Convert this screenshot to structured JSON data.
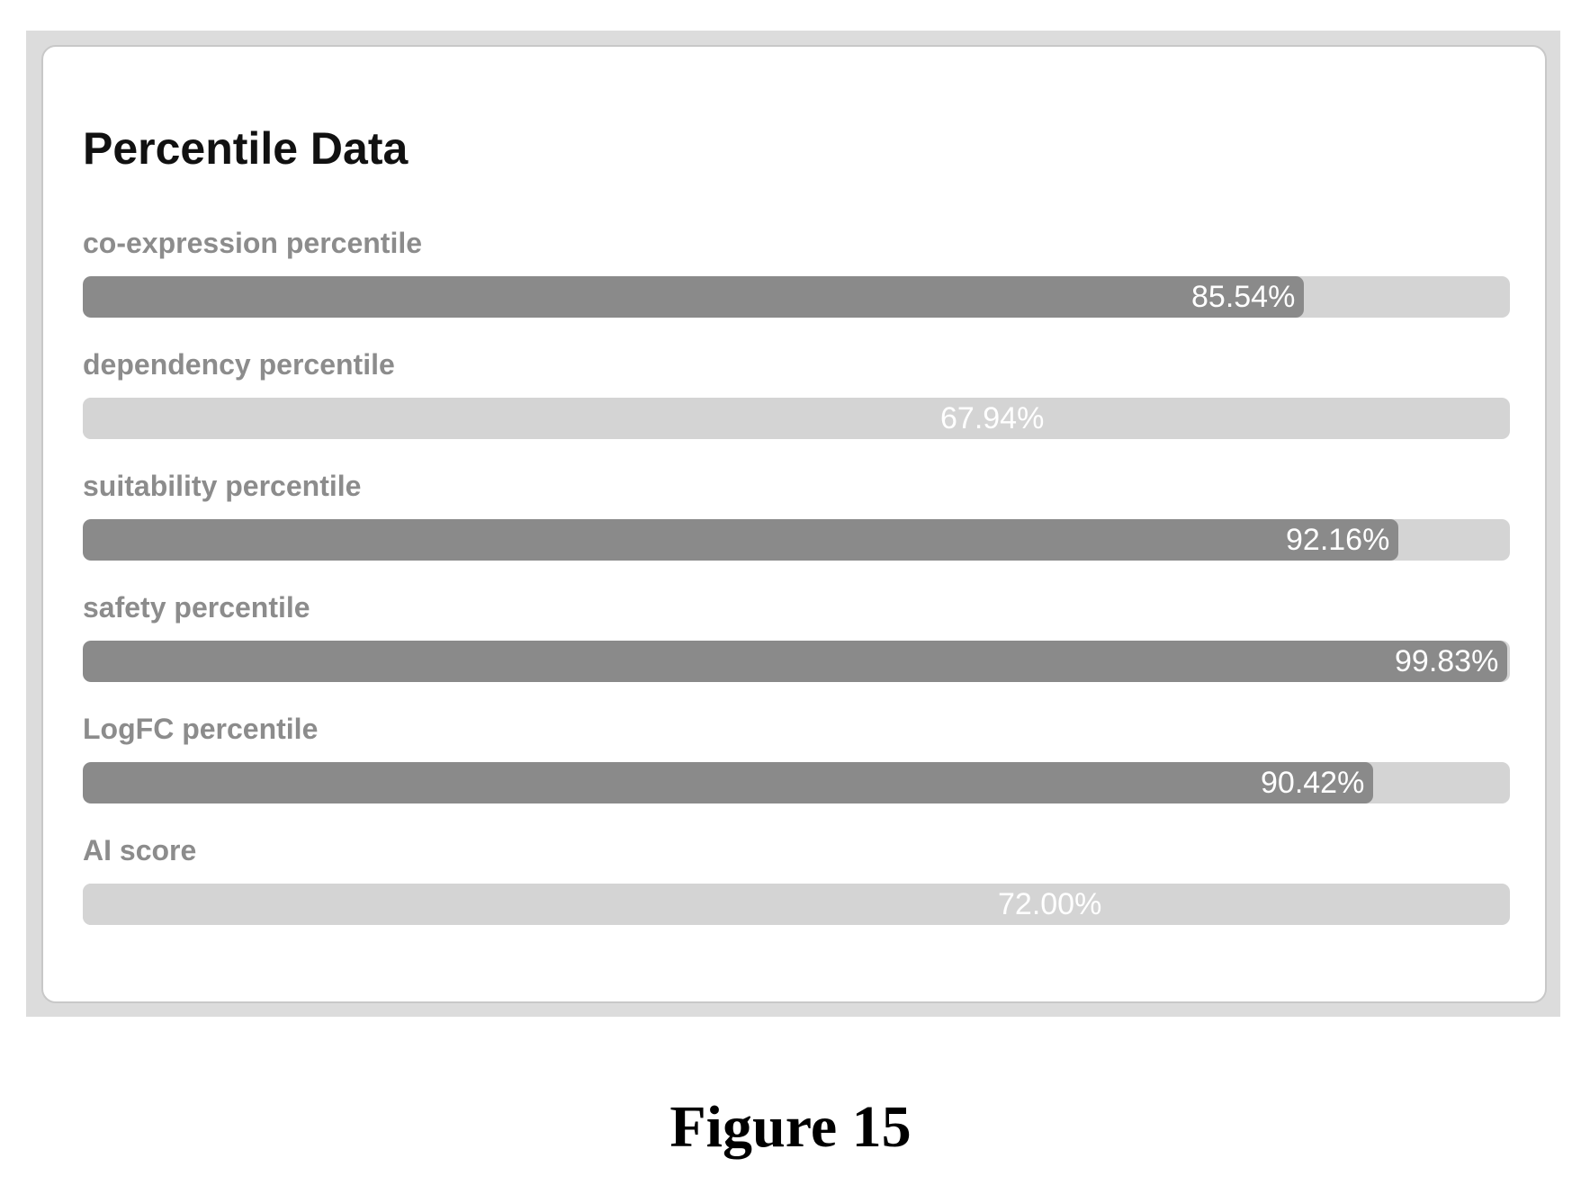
{
  "card": {
    "title": "Percentile Data"
  },
  "metrics": [
    {
      "label": "co-expression percentile",
      "value_text": "85.54%",
      "fraction": 0.8554,
      "style": "filled"
    },
    {
      "label": "dependency percentile",
      "value_text": "67.94%",
      "fraction": 0.6794,
      "style": "light"
    },
    {
      "label": "suitability percentile",
      "value_text": "92.16%",
      "fraction": 0.9216,
      "style": "filled"
    },
    {
      "label": "safety percentile",
      "value_text": "99.83%",
      "fraction": 0.9983,
      "style": "filled"
    },
    {
      "label": "LogFC percentile",
      "value_text": "90.42%",
      "fraction": 0.9042,
      "style": "filled"
    },
    {
      "label": "AI score",
      "value_text": "72.00%",
      "fraction": 0.72,
      "style": "light"
    }
  ],
  "caption": "Figure 15",
  "colors": {
    "bar_fill": "#8a8a8a",
    "bar_track": "#d4d4d4",
    "label_text": "#8c8c8c",
    "value_text": "#ffffff"
  }
}
